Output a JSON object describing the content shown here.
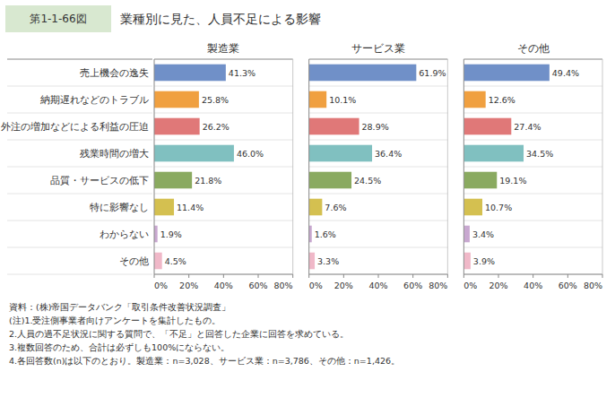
{
  "chart_data": {
    "type": "bar",
    "orientation": "horizontal",
    "title": "業種別に見た、人員不足による影響",
    "annotations": [
      "第1-1-66図",
      "資料：(株)帝国データバンク「取引条件改善状況調査」",
      "(注)1.受注側事業者向けアンケートを集計したもの。",
      "2.人員の過不足状況に関する質問で、「不足」と回答した企業に回答を求めている。",
      "3.複数回答のため、合計は必ずしも100%にならない。",
      "4.各回答数(n)は以下のとおり。製造業：n=3,028、サービス業：n=3,786、その他：n=1,426。"
    ],
    "categories": [
      "売上機会の逸失",
      "納期遅れなどのトラブル",
      "外注の増加などによる利益の圧迫",
      "残業時間の増大",
      "品質・サービスの低下",
      "特に影響なし",
      "わからない",
      "その他"
    ],
    "colors": [
      "#7090c8",
      "#f0a040",
      "#e07878",
      "#80c0c0",
      "#8aaa60",
      "#d4c050",
      "#c8a8d0",
      "#f0b8c8"
    ],
    "series": [
      {
        "name": "製造業",
        "values": [
          41.3,
          25.8,
          26.2,
          46.0,
          21.8,
          11.4,
          1.9,
          4.5
        ],
        "value_labels": [
          "41.3%",
          "25.8%",
          "26.2%",
          "46.0%",
          "21.8%",
          "11.4%",
          "1.9%",
          "4.5%"
        ]
      },
      {
        "name": "サービス業",
        "values": [
          61.9,
          10.1,
          28.9,
          36.4,
          24.5,
          7.6,
          1.6,
          3.3
        ],
        "value_labels": [
          "61.9%",
          "10.1%",
          "28.9%",
          "36.4%",
          "24.5%",
          "7.6%",
          "1.6%",
          "3.3%"
        ]
      },
      {
        "name": "その他",
        "values": [
          49.4,
          12.6,
          27.4,
          34.5,
          19.1,
          10.7,
          3.4,
          3.9
        ],
        "value_labels": [
          "49.4%",
          "12.6%",
          "27.4%",
          "34.5%",
          "19.1%",
          "10.7%",
          "3.4%",
          "3.9%"
        ]
      }
    ],
    "xlim": [
      0,
      80
    ],
    "xticks": [
      {
        "value": 0,
        "label": "0%"
      },
      {
        "value": 20,
        "label": "20%"
      },
      {
        "value": 40,
        "label": "40%"
      },
      {
        "value": 60,
        "label": "60%"
      },
      {
        "value": 80,
        "label": "80%"
      }
    ],
    "data_labels": true
  }
}
